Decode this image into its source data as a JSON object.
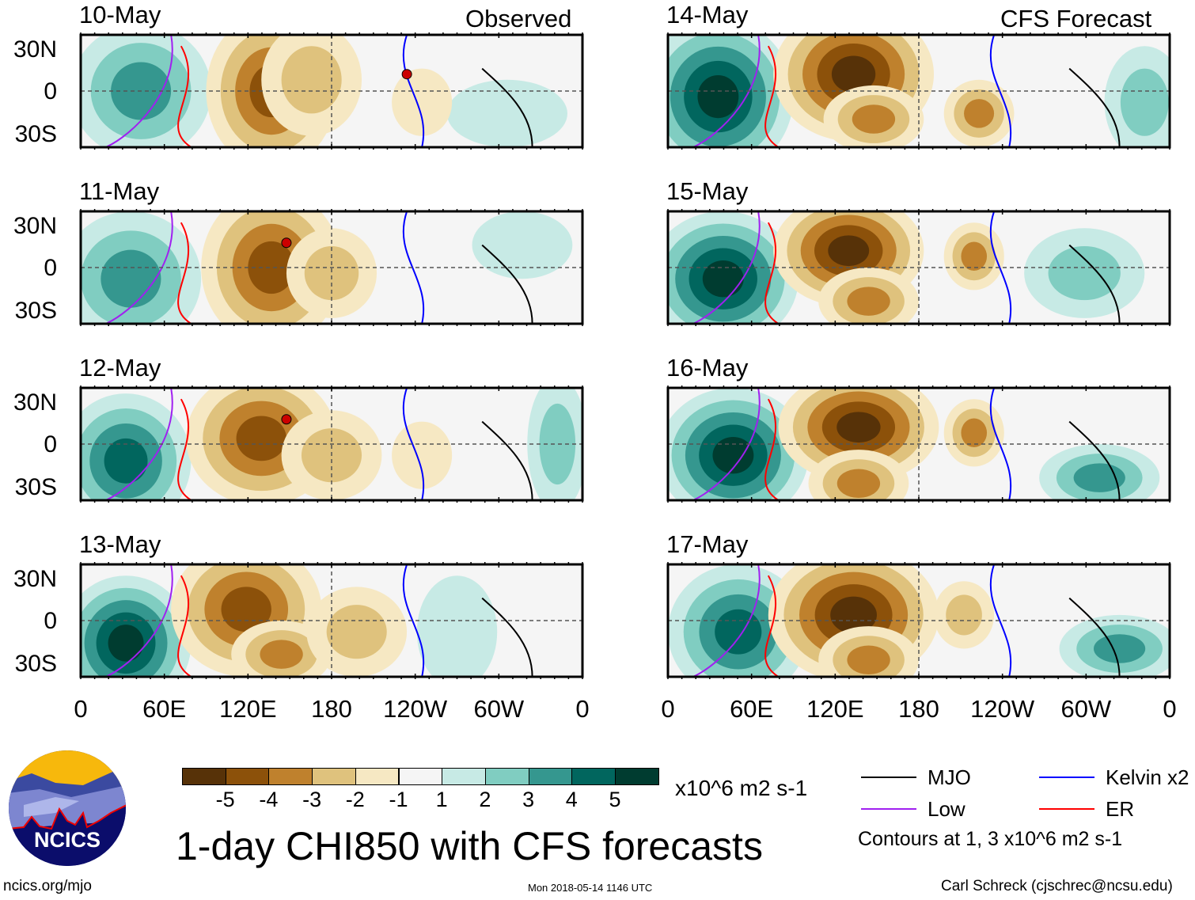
{
  "headers": {
    "observed": "Observed",
    "forecast": "CFS Forecast"
  },
  "lat_labels": [
    "30N",
    "0",
    "30S"
  ],
  "lon_labels": [
    "0",
    "60E",
    "120E",
    "180",
    "120W",
    "60W",
    "0"
  ],
  "panels": {
    "observed": [
      {
        "date": "10-May"
      },
      {
        "date": "11-May"
      },
      {
        "date": "12-May"
      },
      {
        "date": "13-May"
      }
    ],
    "forecast": [
      {
        "date": "14-May"
      },
      {
        "date": "15-May"
      },
      {
        "date": "16-May"
      },
      {
        "date": "17-May"
      }
    ]
  },
  "chart_data": {
    "type": "heatmap",
    "title": "1-day CHI850 with CFS forecasts",
    "units": "x10^6 m2 s-1",
    "levels": [
      "-5",
      "-4",
      "-3",
      "-2",
      "-1",
      "1",
      "2",
      "3",
      "4",
      "5"
    ],
    "colors": [
      "#573208",
      "#8c510a",
      "#bf812d",
      "#dfc27d",
      "#f6e8c3",
      "#f5f5f5",
      "#c7eae5",
      "#80cdc1",
      "#35978f",
      "#01665e",
      "#003c30"
    ],
    "lat_range": [
      "30S",
      "30N"
    ],
    "lon_range": [
      "0",
      "0"
    ]
  },
  "legend": {
    "items": [
      {
        "label": "MJO",
        "color": "#000000"
      },
      {
        "label": "Kelvin x2",
        "color": "#0000ff"
      },
      {
        "label": "Low",
        "color": "#a020f0"
      },
      {
        "label": "ER",
        "color": "#ff0000"
      }
    ],
    "note": "Contours at 1, 3 x10^6 m2 s-1"
  },
  "logo": {
    "text": "NCICS"
  },
  "footer": {
    "url": "ncics.org/mjo",
    "timestamp": "Mon 2018-05-14 1146 UTC",
    "credit": "Carl Schreck (cjschrec@ncsu.edu)"
  }
}
